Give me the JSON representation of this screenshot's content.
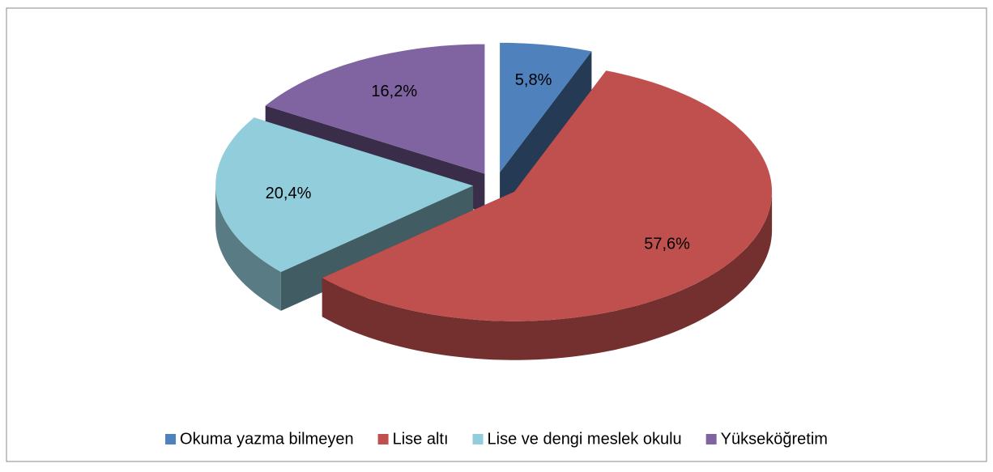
{
  "chart_data": {
    "type": "pie",
    "categories": [
      "Okuma yazma bilmeyen",
      "Lise altı",
      "Lise ve dengi meslek okulu",
      "Yükseköğretim"
    ],
    "values": [
      5.8,
      57.6,
      20.4,
      16.2
    ],
    "value_labels": [
      "5,8%",
      "57,6%",
      "20,4%",
      "16,2%"
    ],
    "colors": [
      "#4f81bd",
      "#c0504d",
      "#92cddc",
      "#8064a2"
    ],
    "legend": "bottom"
  }
}
